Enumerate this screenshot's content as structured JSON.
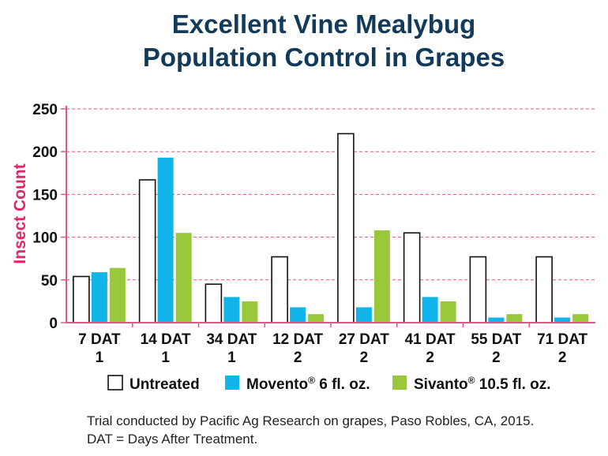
{
  "chart_data": {
    "type": "bar",
    "title_lines": [
      "Excellent Vine Mealybug",
      "Population Control in Grapes"
    ],
    "ylabel": "Insect Count",
    "ylim": [
      0,
      250
    ],
    "yticks": [
      0,
      50,
      100,
      150,
      200,
      250
    ],
    "grid": "horizontal dashed",
    "categories": [
      [
        "7 DAT",
        "1"
      ],
      [
        "14 DAT",
        "1"
      ],
      [
        "34 DAT",
        "1"
      ],
      [
        "12 DAT",
        "2"
      ],
      [
        "27 DAT",
        "2"
      ],
      [
        "41 DAT",
        "2"
      ],
      [
        "55 DAT",
        "2"
      ],
      [
        "71 DAT",
        "2"
      ]
    ],
    "series": [
      {
        "name": "Untreated",
        "color": "#ffffff",
        "stroke": "#111111",
        "values": [
          54,
          167,
          45,
          77,
          221,
          105,
          77,
          77
        ]
      },
      {
        "name": "Movento",
        "name_mark": "®",
        "name_suffix": " 6 fl. oz.",
        "color": "#11b5ea",
        "values": [
          59,
          193,
          30,
          18,
          18,
          30,
          6,
          6
        ]
      },
      {
        "name": "Sivanto",
        "name_mark": "®",
        "name_suffix": " 10.5 fl. oz.",
        "color": "#99c93b",
        "values": [
          64,
          105,
          25,
          10,
          108,
          25,
          10,
          10
        ]
      }
    ],
    "legend_position": "bottom",
    "grid_color": "#e35586",
    "footnotes": [
      "Trial conducted by Pacific Ag Research on grapes, Paso Robles, CA, 2015.",
      "DAT = Days After Treatment."
    ]
  }
}
